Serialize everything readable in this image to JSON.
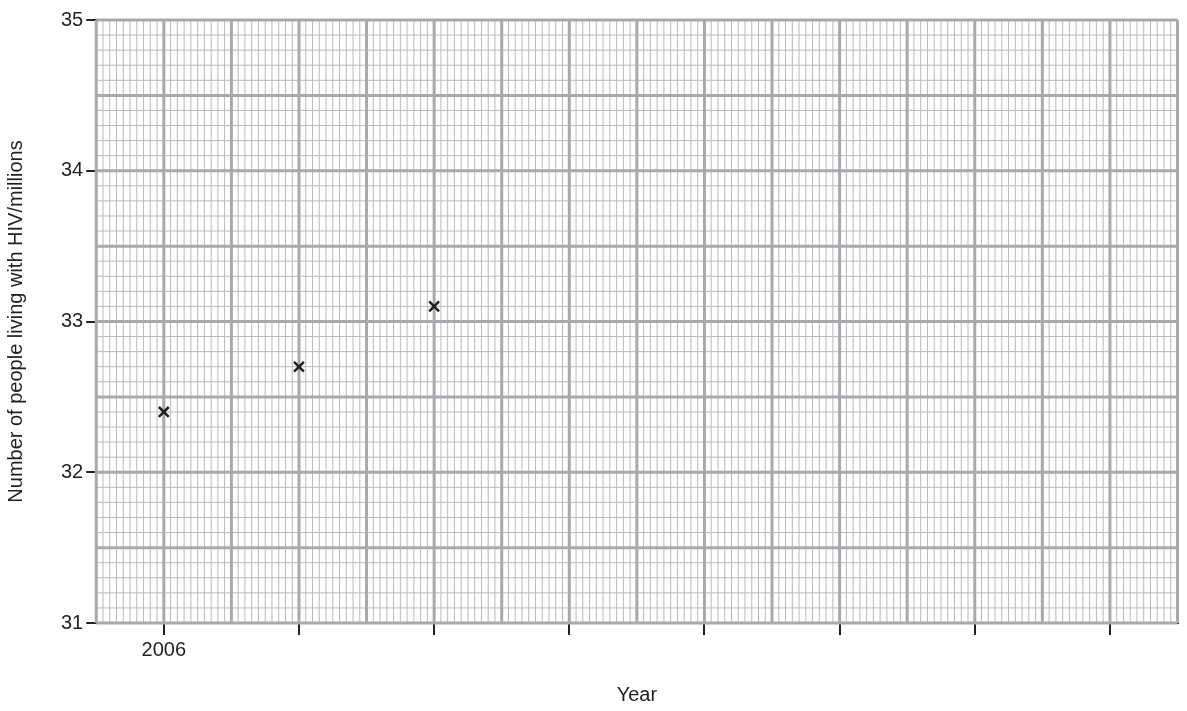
{
  "chart_data": {
    "type": "scatter",
    "xlabel": "Year",
    "ylabel": "Number of people living with HIV/millions",
    "categories": [
      "2006",
      null,
      null,
      null,
      null,
      null,
      null,
      null
    ],
    "series": [
      {
        "color": "#231f20",
        "values": [
          32.4,
          32.7,
          33.1,
          null,
          null,
          null,
          null,
          null
        ]
      }
    ],
    "ylim": [
      31,
      35
    ],
    "yticks": [
      31,
      32,
      33,
      34,
      35
    ],
    "grid": true,
    "marker": "cross",
    "legend": false
  }
}
